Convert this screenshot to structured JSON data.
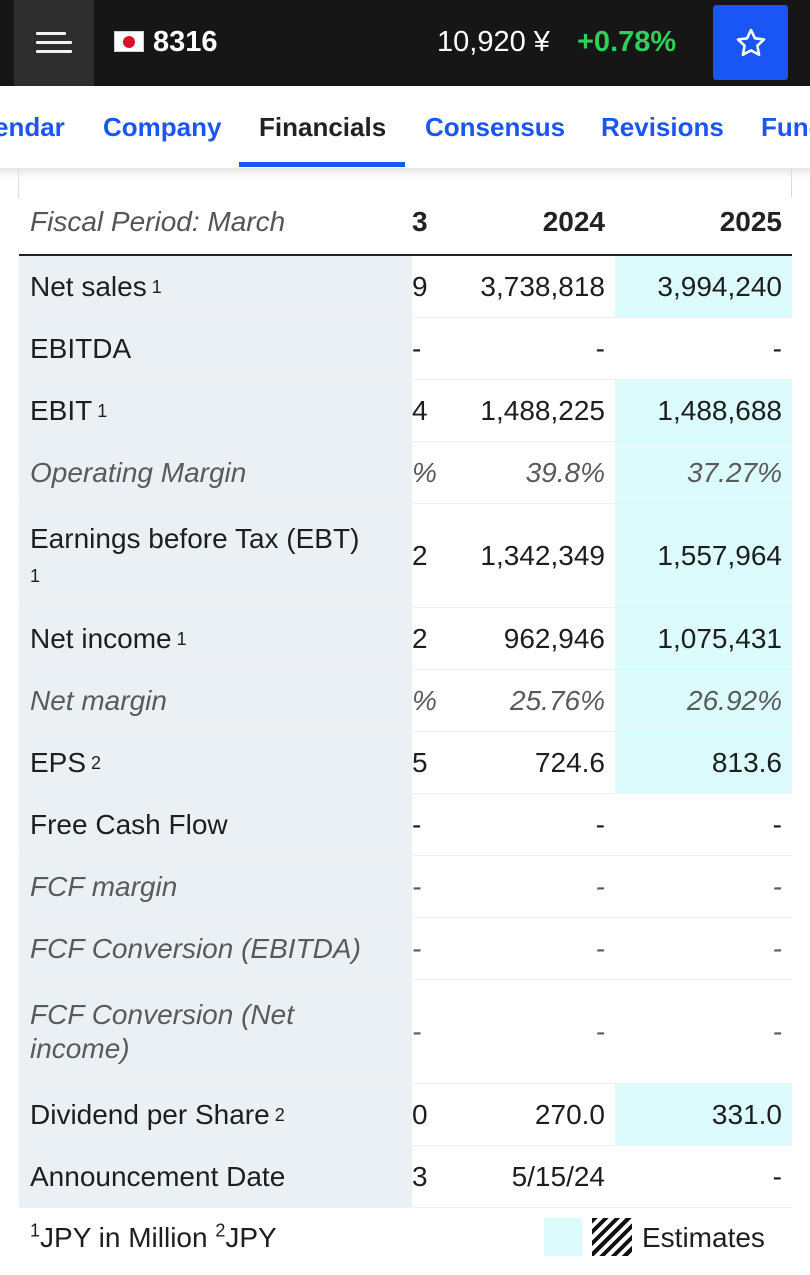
{
  "header": {
    "ticker": "8316",
    "price": "10,920 ¥",
    "change": "+0.78%"
  },
  "tabs": [
    {
      "label": "endar"
    },
    {
      "label": "Company"
    },
    {
      "label": "Financials"
    },
    {
      "label": "Consensus"
    },
    {
      "label": "Revisions"
    },
    {
      "label": "Fund"
    }
  ],
  "table": {
    "header_label": "Fiscal Period: March",
    "columns": [
      "3",
      "2024",
      "2025"
    ],
    "rows": [
      {
        "label": "Net sales",
        "note": "1",
        "clip": "9",
        "v2024": "3,738,818",
        "v2025": "3,994,240"
      },
      {
        "label": "EBITDA",
        "note": "",
        "clip": "-",
        "v2024": "-",
        "v2025": "-"
      },
      {
        "label": "EBIT",
        "note": "1",
        "clip": "4",
        "v2024": "1,488,225",
        "v2025": "1,488,688"
      },
      {
        "label": "Operating Margin",
        "note": "",
        "clip": "%",
        "v2024": "39.8%",
        "v2025": "37.27%"
      },
      {
        "label": "Earnings before Tax (EBT)",
        "note": "1",
        "clip": "2",
        "v2024": "1,342,349",
        "v2025": "1,557,964"
      },
      {
        "label": "Net income",
        "note": "1",
        "clip": "2",
        "v2024": "962,946",
        "v2025": "1,075,431"
      },
      {
        "label": "Net margin",
        "note": "",
        "clip": "%",
        "v2024": "25.76%",
        "v2025": "26.92%"
      },
      {
        "label": "EPS",
        "note": "2",
        "clip": "5",
        "v2024": "724.6",
        "v2025": "813.6"
      },
      {
        "label": "Free Cash Flow",
        "note": "",
        "clip": "-",
        "v2024": "-",
        "v2025": "-"
      },
      {
        "label": "FCF margin",
        "note": "",
        "clip": "-",
        "v2024": "-",
        "v2025": "-"
      },
      {
        "label": "FCF Conversion (EBITDA)",
        "note": "",
        "clip": "-",
        "v2024": "-",
        "v2025": "-"
      },
      {
        "label": "FCF Conversion (Net income)",
        "note": "",
        "clip": "-",
        "v2024": "-",
        "v2025": "-"
      },
      {
        "label": "Dividend per Share",
        "note": "2",
        "clip": "0",
        "v2024": "270.0",
        "v2025": "331.0"
      },
      {
        "label": "Announcement Date",
        "note": "",
        "clip": "3",
        "v2024": "5/15/24",
        "v2025": "-"
      }
    ]
  },
  "footer": {
    "note1_mark": "1",
    "note1_text": "JPY in Million",
    "note2_mark": "2",
    "note2_text": "JPY",
    "legend_label": "Estimates"
  }
}
